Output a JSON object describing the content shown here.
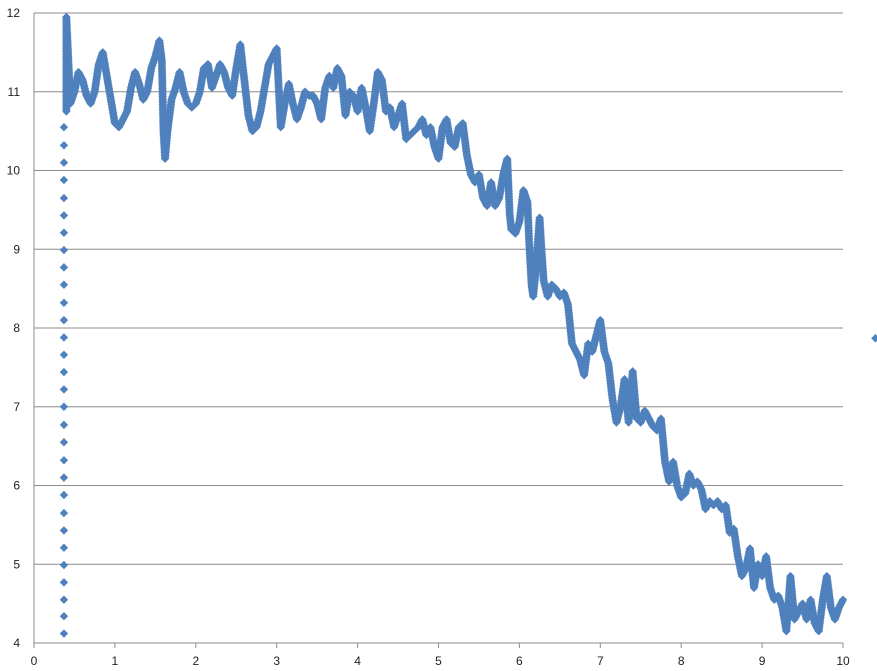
{
  "chart_data": {
    "type": "scatter",
    "title": "",
    "xlabel": "",
    "ylabel": "",
    "xlim": [
      0,
      10
    ],
    "ylim": [
      4,
      12
    ],
    "x_ticks": [
      "0",
      "1",
      "2",
      "3",
      "4",
      "5",
      "6",
      "7",
      "8",
      "9",
      "10"
    ],
    "y_ticks": [
      "4",
      "5",
      "6",
      "7",
      "8",
      "9",
      "10",
      "11",
      "12"
    ],
    "grid": "horizontal",
    "marker": "diamond",
    "colors": {
      "marker": "#4f81bd",
      "grid": "#8c8c8c",
      "axis": "#8c8c8c"
    },
    "series": [
      {
        "points": [
          [
            0.37,
            4.12
          ],
          [
            0.37,
            4.34
          ],
          [
            0.37,
            4.55
          ],
          [
            0.37,
            4.77
          ],
          [
            0.37,
            4.99
          ],
          [
            0.37,
            5.21
          ],
          [
            0.37,
            5.43
          ],
          [
            0.37,
            5.65
          ],
          [
            0.37,
            5.88
          ],
          [
            0.37,
            6.1
          ],
          [
            0.37,
            6.32
          ],
          [
            0.37,
            6.55
          ],
          [
            0.37,
            6.77
          ],
          [
            0.37,
            7.0
          ],
          [
            0.37,
            7.22
          ],
          [
            0.37,
            7.44
          ],
          [
            0.37,
            7.66
          ],
          [
            0.37,
            7.88
          ],
          [
            0.37,
            8.1
          ],
          [
            0.37,
            8.32
          ],
          [
            0.37,
            8.55
          ],
          [
            0.37,
            8.77
          ],
          [
            0.37,
            8.99
          ],
          [
            0.37,
            9.21
          ],
          [
            0.37,
            9.43
          ],
          [
            0.37,
            9.65
          ],
          [
            0.37,
            9.88
          ],
          [
            0.37,
            10.1
          ],
          [
            0.37,
            10.32
          ],
          [
            0.37,
            10.55
          ],
          [
            0.4,
            10.75
          ],
          [
            0.4,
            10.95
          ],
          [
            0.4,
            11.15
          ],
          [
            0.4,
            11.35
          ],
          [
            0.4,
            11.55
          ],
          [
            0.4,
            11.75
          ],
          [
            0.4,
            11.95
          ],
          [
            0.45,
            10.85
          ],
          [
            0.5,
            11.0
          ],
          [
            0.55,
            11.25
          ],
          [
            0.6,
            11.15
          ],
          [
            0.65,
            10.95
          ],
          [
            0.7,
            10.85
          ],
          [
            0.75,
            11.0
          ],
          [
            0.8,
            11.35
          ],
          [
            0.85,
            11.5
          ],
          [
            0.9,
            11.2
          ],
          [
            0.95,
            10.9
          ],
          [
            1.0,
            10.6
          ],
          [
            1.05,
            10.55
          ],
          [
            1.1,
            10.65
          ],
          [
            1.15,
            10.75
          ],
          [
            1.2,
            11.05
          ],
          [
            1.25,
            11.25
          ],
          [
            1.3,
            11.1
          ],
          [
            1.35,
            10.9
          ],
          [
            1.4,
            11.0
          ],
          [
            1.45,
            11.3
          ],
          [
            1.5,
            11.45
          ],
          [
            1.55,
            11.65
          ],
          [
            1.58,
            11.4
          ],
          [
            1.6,
            10.5
          ],
          [
            1.62,
            10.15
          ],
          [
            1.65,
            10.5
          ],
          [
            1.7,
            10.9
          ],
          [
            1.75,
            11.05
          ],
          [
            1.8,
            11.25
          ],
          [
            1.85,
            11.0
          ],
          [
            1.9,
            10.85
          ],
          [
            1.95,
            10.8
          ],
          [
            2.0,
            10.85
          ],
          [
            2.05,
            11.0
          ],
          [
            2.1,
            11.3
          ],
          [
            2.15,
            11.35
          ],
          [
            2.2,
            11.05
          ],
          [
            2.25,
            11.2
          ],
          [
            2.3,
            11.35
          ],
          [
            2.35,
            11.25
          ],
          [
            2.4,
            11.05
          ],
          [
            2.45,
            10.95
          ],
          [
            2.5,
            11.3
          ],
          [
            2.55,
            11.6
          ],
          [
            2.6,
            11.15
          ],
          [
            2.65,
            10.7
          ],
          [
            2.7,
            10.5
          ],
          [
            2.75,
            10.55
          ],
          [
            2.8,
            10.75
          ],
          [
            2.85,
            11.05
          ],
          [
            2.9,
            11.35
          ],
          [
            2.95,
            11.45
          ],
          [
            3.0,
            11.55
          ],
          [
            3.03,
            10.95
          ],
          [
            3.05,
            10.55
          ],
          [
            3.1,
            10.85
          ],
          [
            3.15,
            11.1
          ],
          [
            3.2,
            10.85
          ],
          [
            3.25,
            10.65
          ],
          [
            3.3,
            10.8
          ],
          [
            3.35,
            11.0
          ],
          [
            3.4,
            10.95
          ],
          [
            3.45,
            10.95
          ],
          [
            3.5,
            10.85
          ],
          [
            3.55,
            10.65
          ],
          [
            3.6,
            11.05
          ],
          [
            3.65,
            11.2
          ],
          [
            3.7,
            11.05
          ],
          [
            3.75,
            11.3
          ],
          [
            3.8,
            11.2
          ],
          [
            3.85,
            10.7
          ],
          [
            3.9,
            11.0
          ],
          [
            3.95,
            10.95
          ],
          [
            4.0,
            10.75
          ],
          [
            4.05,
            11.05
          ],
          [
            4.1,
            10.8
          ],
          [
            4.15,
            10.5
          ],
          [
            4.2,
            10.85
          ],
          [
            4.25,
            11.25
          ],
          [
            4.3,
            11.15
          ],
          [
            4.35,
            10.75
          ],
          [
            4.4,
            10.8
          ],
          [
            4.45,
            10.55
          ],
          [
            4.5,
            10.7
          ],
          [
            4.55,
            10.85
          ],
          [
            4.6,
            10.4
          ],
          [
            4.65,
            10.45
          ],
          [
            4.7,
            10.5
          ],
          [
            4.75,
            10.55
          ],
          [
            4.8,
            10.65
          ],
          [
            4.85,
            10.45
          ],
          [
            4.9,
            10.55
          ],
          [
            4.95,
            10.3
          ],
          [
            5.0,
            10.15
          ],
          [
            5.05,
            10.55
          ],
          [
            5.1,
            10.65
          ],
          [
            5.15,
            10.35
          ],
          [
            5.2,
            10.3
          ],
          [
            5.25,
            10.55
          ],
          [
            5.3,
            10.6
          ],
          [
            5.35,
            10.2
          ],
          [
            5.4,
            9.95
          ],
          [
            5.45,
            9.85
          ],
          [
            5.5,
            9.95
          ],
          [
            5.55,
            9.65
          ],
          [
            5.6,
            9.55
          ],
          [
            5.65,
            9.85
          ],
          [
            5.7,
            9.55
          ],
          [
            5.75,
            9.65
          ],
          [
            5.8,
            9.95
          ],
          [
            5.85,
            10.15
          ],
          [
            5.88,
            9.45
          ],
          [
            5.9,
            9.25
          ],
          [
            5.95,
            9.2
          ],
          [
            6.0,
            9.35
          ],
          [
            6.05,
            9.75
          ],
          [
            6.1,
            9.6
          ],
          [
            6.12,
            9.1
          ],
          [
            6.15,
            8.55
          ],
          [
            6.17,
            8.4
          ],
          [
            6.2,
            8.7
          ],
          [
            6.25,
            9.4
          ],
          [
            6.27,
            9.05
          ],
          [
            6.3,
            8.6
          ],
          [
            6.35,
            8.4
          ],
          [
            6.4,
            8.55
          ],
          [
            6.45,
            8.5
          ],
          [
            6.5,
            8.4
          ],
          [
            6.55,
            8.45
          ],
          [
            6.6,
            8.3
          ],
          [
            6.65,
            7.8
          ],
          [
            6.7,
            7.7
          ],
          [
            6.75,
            7.6
          ],
          [
            6.8,
            7.4
          ],
          [
            6.85,
            7.8
          ],
          [
            6.9,
            7.7
          ],
          [
            6.95,
            7.9
          ],
          [
            7.0,
            8.1
          ],
          [
            7.05,
            7.7
          ],
          [
            7.1,
            7.55
          ],
          [
            7.15,
            7.1
          ],
          [
            7.2,
            6.8
          ],
          [
            7.25,
            7.0
          ],
          [
            7.3,
            7.35
          ],
          [
            7.35,
            6.8
          ],
          [
            7.4,
            7.45
          ],
          [
            7.45,
            6.85
          ],
          [
            7.5,
            6.8
          ],
          [
            7.55,
            6.95
          ],
          [
            7.6,
            6.85
          ],
          [
            7.65,
            6.75
          ],
          [
            7.7,
            6.7
          ],
          [
            7.75,
            6.85
          ],
          [
            7.8,
            6.3
          ],
          [
            7.85,
            6.05
          ],
          [
            7.9,
            6.3
          ],
          [
            7.95,
            6.0
          ],
          [
            8.0,
            5.85
          ],
          [
            8.05,
            5.9
          ],
          [
            8.1,
            6.15
          ],
          [
            8.15,
            6.0
          ],
          [
            8.2,
            6.05
          ],
          [
            8.25,
            5.95
          ],
          [
            8.3,
            5.7
          ],
          [
            8.35,
            5.8
          ],
          [
            8.4,
            5.75
          ],
          [
            8.45,
            5.8
          ],
          [
            8.5,
            5.7
          ],
          [
            8.55,
            5.75
          ],
          [
            8.6,
            5.4
          ],
          [
            8.65,
            5.45
          ],
          [
            8.7,
            5.1
          ],
          [
            8.75,
            4.85
          ],
          [
            8.8,
            4.95
          ],
          [
            8.85,
            5.2
          ],
          [
            8.9,
            4.7
          ],
          [
            8.95,
            5.0
          ],
          [
            9.0,
            4.85
          ],
          [
            9.05,
            5.1
          ],
          [
            9.1,
            4.7
          ],
          [
            9.15,
            4.55
          ],
          [
            9.2,
            4.6
          ],
          [
            9.25,
            4.45
          ],
          [
            9.3,
            4.15
          ],
          [
            9.35,
            4.85
          ],
          [
            9.4,
            4.3
          ],
          [
            9.45,
            4.4
          ],
          [
            9.5,
            4.5
          ],
          [
            9.55,
            4.3
          ],
          [
            9.6,
            4.55
          ],
          [
            9.65,
            4.25
          ],
          [
            9.7,
            4.15
          ],
          [
            9.75,
            4.55
          ],
          [
            9.8,
            4.85
          ],
          [
            9.85,
            4.45
          ],
          [
            9.9,
            4.3
          ],
          [
            9.95,
            4.45
          ],
          [
            10.0,
            4.55
          ],
          [
            10.4,
            7.87
          ]
        ]
      }
    ]
  }
}
